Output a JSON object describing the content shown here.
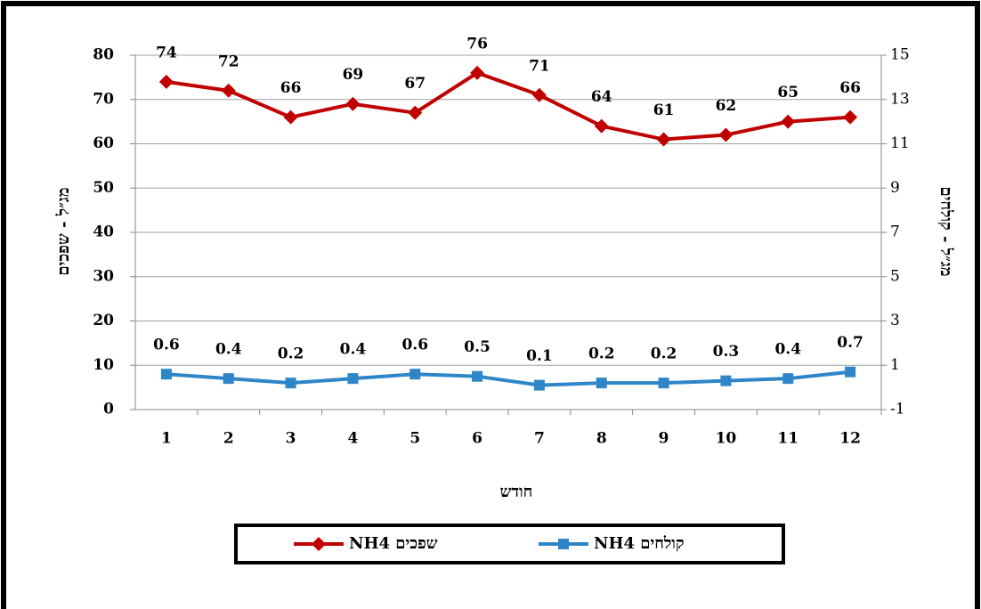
{
  "chart_data": {
    "type": "line",
    "categories": [
      "1",
      "2",
      "3",
      "4",
      "5",
      "6",
      "7",
      "8",
      "9",
      "10",
      "11",
      "12"
    ],
    "series": [
      {
        "name": "שפכים NH4",
        "color": "#c00000",
        "marker": "diamond",
        "values": [
          74,
          72,
          66,
          69,
          67,
          76,
          71,
          64,
          61,
          62,
          65,
          66
        ]
      },
      {
        "name": "קולחים NH4",
        "color": "#2e86c8",
        "marker": "square",
        "axis": "y2",
        "values": [
          0.6,
          0.4,
          0.2,
          0.4,
          0.6,
          0.5,
          0.1,
          0.2,
          0.2,
          0.3,
          0.4,
          0.7
        ]
      }
    ],
    "ylabel": "מג״ל - שפכים",
    "y2label": "מג״ל - קולחים",
    "xlabel": "חודש",
    "ylim": [
      0,
      80
    ],
    "yticks": [
      0,
      10,
      20,
      30,
      40,
      50,
      60,
      70,
      80
    ],
    "y2lim": [
      -1,
      15
    ],
    "y2ticks": [
      -1,
      1,
      3,
      5,
      7,
      9,
      11,
      13,
      15
    ],
    "grid": true,
    "legend": "bottom"
  }
}
